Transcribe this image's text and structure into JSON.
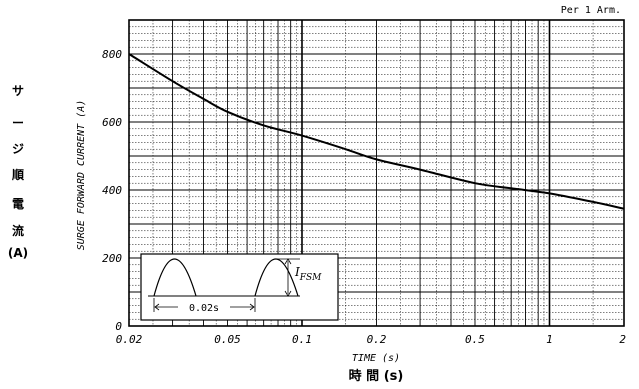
{
  "chart_data": {
    "type": "line",
    "title": "",
    "note_top_right": "Per 1 Arm.",
    "xlabel": "TIME (s)",
    "xlabel_jp": "時 間 (s)",
    "ylabel": "SURGE FORWARD CURRENT (A)",
    "ylabel_jp_chars": [
      "サ",
      "ー",
      "ジ",
      "順",
      "電",
      "流",
      "(A)"
    ],
    "x_scale": "log",
    "xlim": [
      0.02,
      2
    ],
    "ylim": [
      0,
      900
    ],
    "x_ticks": [
      0.02,
      0.05,
      0.1,
      0.2,
      0.5,
      1,
      2
    ],
    "x_tick_labels": [
      "0.02",
      "0.05",
      "0.1",
      "0.2",
      "0.5",
      "1",
      "2"
    ],
    "y_ticks": [
      0,
      200,
      400,
      600,
      800
    ],
    "y_tick_labels": [
      "0",
      "200",
      "400",
      "600",
      "800"
    ],
    "grid": true,
    "series": [
      {
        "x": [
          0.02,
          0.03,
          0.04,
          0.05,
          0.07,
          0.1,
          0.15,
          0.2,
          0.3,
          0.5,
          0.7,
          1,
          1.5,
          2
        ],
        "y": [
          800,
          720,
          668,
          630,
          590,
          560,
          520,
          490,
          460,
          420,
          405,
          390,
          365,
          345
        ]
      }
    ],
    "inset": {
      "label": "I",
      "label_sub": "FSM",
      "period_label": "0.02s"
    }
  }
}
